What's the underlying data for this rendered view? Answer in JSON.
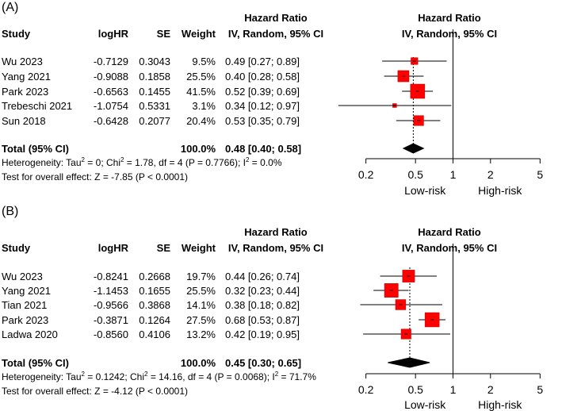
{
  "chart_data": [
    {
      "type": "forest",
      "panel_label": "(A)",
      "header": {
        "study": "Study",
        "loghr": "logHR",
        "se": "SE",
        "weight": "Weight",
        "hr_title": "Hazard Ratio",
        "hr_sub": "IV, Random, 95% CI",
        "plot_title": "Hazard Ratio",
        "plot_sub": "IV, Random, 95% CI"
      },
      "studies": [
        {
          "name": "Wu 2023",
          "loghr": "-0.7129",
          "se": "0.3043",
          "weight": "9.5%",
          "hr_text": "0.49 [0.27; 0.89]",
          "hr": 0.49,
          "lower": 0.27,
          "upper": 0.89,
          "w": 9.5
        },
        {
          "name": "Yang 2021",
          "loghr": "-0.9088",
          "se": "0.1858",
          "weight": "25.5%",
          "hr_text": "0.40 [0.28; 0.58]",
          "hr": 0.4,
          "lower": 0.28,
          "upper": 0.58,
          "w": 25.5
        },
        {
          "name": "Park 2023",
          "loghr": "-0.6563",
          "se": "0.1455",
          "weight": "41.5%",
          "hr_text": "0.52 [0.39; 0.69]",
          "hr": 0.52,
          "lower": 0.39,
          "upper": 0.69,
          "w": 41.5
        },
        {
          "name": "Trebeschi 2021",
          "loghr": "-1.0754",
          "se": "0.5331",
          "weight": "3.1%",
          "hr_text": "0.34 [0.12; 0.97]",
          "hr": 0.34,
          "lower": 0.12,
          "upper": 0.97,
          "w": 3.1
        },
        {
          "name": "Sun 2018",
          "loghr": "-0.6428",
          "se": "0.2077",
          "weight": "20.4%",
          "hr_text": "0.53 [0.35; 0.79]",
          "hr": 0.53,
          "lower": 0.35,
          "upper": 0.79,
          "w": 20.4
        }
      ],
      "total": {
        "label": "Total (95% CI)",
        "weight": "100.0%",
        "hr_text": "0.48 [0.40; 0.58]",
        "hr": 0.48,
        "lower": 0.4,
        "upper": 0.58
      },
      "heterogeneity": {
        "prefix": "Heterogeneity: Tau",
        "tau_val": " = 0; Chi",
        "chi_val": " = 1.78, df = 4 (P = 0.7766); I",
        "i_val": " = 0.0%",
        "sup": "2"
      },
      "overall_effect": "Test for overall effect: Z = -7.85 (P < 0.0001)",
      "x_scale": "log",
      "xlim": [
        0.15,
        7.5
      ],
      "ticks": [
        {
          "value": 0.2,
          "label": "0.2"
        },
        {
          "value": 0.5,
          "label": "0.5"
        },
        {
          "value": 1,
          "label": "1"
        },
        {
          "value": 2,
          "label": "2"
        },
        {
          "value": 5,
          "label": "5"
        }
      ],
      "favours_left": "Low-risk",
      "favours_right": "High-risk"
    },
    {
      "type": "forest",
      "panel_label": "(B)",
      "header": {
        "study": "Study",
        "loghr": "logHR",
        "se": "SE",
        "weight": "Weight",
        "hr_title": "Hazard Ratio",
        "hr_sub": "IV, Random, 95% CI",
        "plot_title": "Hazard Ratio",
        "plot_sub": "IV, Random, 95% CI"
      },
      "studies": [
        {
          "name": "Wu 2023",
          "loghr": "-0.8241",
          "se": "0.2668",
          "weight": "19.7%",
          "hr_text": "0.44 [0.26; 0.74]",
          "hr": 0.44,
          "lower": 0.26,
          "upper": 0.74,
          "w": 19.7
        },
        {
          "name": "Yang 2021",
          "loghr": "-1.1453",
          "se": "0.1655",
          "weight": "25.5%",
          "hr_text": "0.32 [0.23; 0.44]",
          "hr": 0.32,
          "lower": 0.23,
          "upper": 0.44,
          "w": 25.5
        },
        {
          "name": "Tian 2021",
          "loghr": "-0.9566",
          "se": "0.3868",
          "weight": "14.1%",
          "hr_text": "0.38 [0.18; 0.82]",
          "hr": 0.38,
          "lower": 0.18,
          "upper": 0.82,
          "w": 14.1
        },
        {
          "name": "Park 2023",
          "loghr": "-0.3871",
          "se": "0.1264",
          "weight": "27.5%",
          "hr_text": "0.68 [0.53; 0.87]",
          "hr": 0.68,
          "lower": 0.53,
          "upper": 0.87,
          "w": 27.5
        },
        {
          "name": "Ladwa 2020",
          "loghr": "-0.8560",
          "se": "0.4106",
          "weight": "13.2%",
          "hr_text": "0.42 [0.19; 0.95]",
          "hr": 0.42,
          "lower": 0.19,
          "upper": 0.95,
          "w": 13.2
        }
      ],
      "total": {
        "label": "Total (95% CI)",
        "weight": "100.0%",
        "hr_text": "0.45 [0.30; 0.65]",
        "hr": 0.45,
        "lower": 0.3,
        "upper": 0.65
      },
      "heterogeneity": {
        "prefix": "Heterogeneity: Tau",
        "tau_val": " = 0.1242; Chi",
        "chi_val": " = 14.16, df = 4 (P = 0.0068); I",
        "i_val": " = 71.7%",
        "sup": "2"
      },
      "overall_effect": "Test for overall effect: Z = -4.12 (P < 0.0001)",
      "x_scale": "log",
      "xlim": [
        0.15,
        7.5
      ],
      "ticks": [
        {
          "value": 0.2,
          "label": "0.2"
        },
        {
          "value": 0.5,
          "label": "0.5"
        },
        {
          "value": 1,
          "label": "1"
        },
        {
          "value": 2,
          "label": "2"
        },
        {
          "value": 5,
          "label": "5"
        }
      ],
      "favours_left": "Low-risk",
      "favours_right": "High-risk"
    }
  ],
  "colors": {
    "marker": "#ff0000",
    "marker_border": "#b30000",
    "line": "#000000",
    "diamond": "#000000"
  }
}
